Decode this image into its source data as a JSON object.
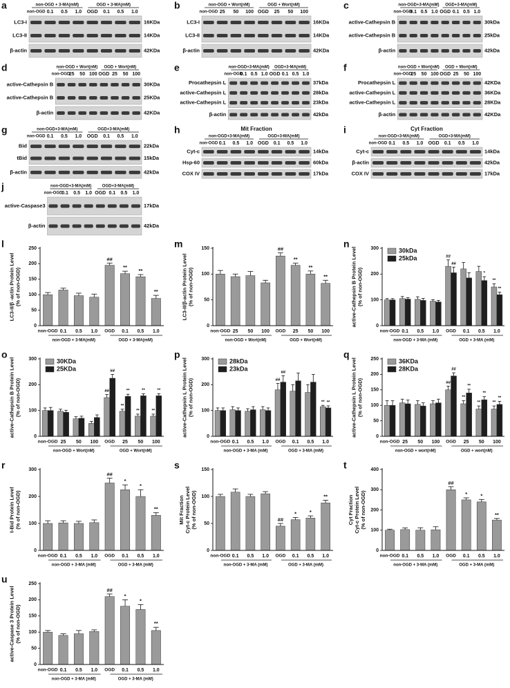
{
  "blots": [
    {
      "letter": "a",
      "groups": [
        "non-OGD + 3-MA(mM)",
        "OGD + 3-MA(mM)"
      ],
      "lanes": [
        "non-OGD",
        "0.1",
        "0.5",
        "1.0",
        "OGD",
        "0.1",
        "0.5",
        "1.0"
      ],
      "strips": [
        {
          "labels": [
            "LC3-I",
            "LC3-II"
          ],
          "kda": [
            "16KDa",
            "14KDa"
          ]
        },
        {
          "labels": [
            "β-actin"
          ],
          "kda": [
            "42KDa"
          ]
        }
      ]
    },
    {
      "letter": "b",
      "groups": [
        "non-OGD + Wort(nM)",
        "OGD + Wort(nM)"
      ],
      "lanes": [
        "non-OGD",
        "25",
        "50",
        "100",
        "OGD",
        "25",
        "50",
        "100"
      ],
      "strips": [
        {
          "labels": [
            "LC3-I",
            "LC3-II"
          ],
          "kda": [
            "16KDa",
            "14KDa"
          ]
        },
        {
          "labels": [
            "β-actin"
          ],
          "kda": [
            "42KDa"
          ]
        }
      ]
    },
    {
      "letter": "c",
      "groups": [
        "non-OGD+3-MA(mM)",
        "OGD+3-MA(mM)"
      ],
      "lanes": [
        "non-OGD",
        "0.1",
        "0.5",
        "1.0",
        "OGD",
        "0.1",
        "0.5",
        "1.0"
      ],
      "strips": [
        {
          "labels": [
            "active-Cathepsin B",
            "active-Cathepsin B"
          ],
          "kda": [
            "30kDa",
            "25kDa"
          ]
        },
        {
          "labels": [
            "β-actin"
          ],
          "kda": [
            "42kDa"
          ]
        }
      ]
    },
    {
      "letter": "d",
      "groups": [
        "non-OGD + Wort(nM)",
        "OGD + Wort(nM)"
      ],
      "lanes": [
        "non-OGD",
        "25",
        "50",
        "100",
        "OGD",
        "25",
        "50",
        "100"
      ],
      "strips": [
        {
          "labels": [
            "active-Cathepsin B",
            "active-Cathepsin B"
          ],
          "kda": [
            "30KDa",
            "25KDa"
          ]
        },
        {
          "labels": [
            "β-actin"
          ],
          "kda": [
            "42KDa"
          ]
        }
      ]
    },
    {
      "letter": "e",
      "groups": [
        "non-OGD+3-MA(mM)",
        "OGD+3-MA(mM)"
      ],
      "lanes": [
        "non-OGD",
        "0.1",
        "0.5",
        "1.0",
        "OGD",
        "0.1",
        "0.5",
        "1.0"
      ],
      "strips": [
        {
          "labels": [
            "Procathepsin L",
            "active-Cathepsin L",
            "active-Cathepsin L"
          ],
          "kda": [
            "37kDa",
            "28kDa",
            "23kDa"
          ]
        },
        {
          "labels": [
            "β-actin"
          ],
          "kda": [
            "42kDa"
          ]
        }
      ]
    },
    {
      "letter": "f",
      "groups": [
        "non-OGD + Wort(nM)",
        "OGD + Wort(nM)"
      ],
      "lanes": [
        "non-OGD",
        "25",
        "50",
        "100",
        "OGD",
        "25",
        "50",
        "100"
      ],
      "strips": [
        {
          "labels": [
            "Procathepsin L",
            "active-Cathepsin L",
            "active-Cathepsin L"
          ],
          "kda": [
            "42KDa",
            "36KDa",
            "28KDa"
          ]
        },
        {
          "labels": [
            "β-actin"
          ],
          "kda": [
            "42KDa"
          ]
        }
      ]
    },
    {
      "letter": "g",
      "groups": [
        "non-OGD+3-MA(mM)",
        "OGD+3-MA(mM)"
      ],
      "lanes": [
        "non-OGD",
        "0.1",
        "0.5",
        "1.0",
        "OGD",
        "0.1",
        "0.5",
        "1.0"
      ],
      "strips": [
        {
          "labels": [
            "Bid",
            "tBid"
          ],
          "kda": [
            "22kDa",
            "15kDa"
          ]
        },
        {
          "labels": [
            "β-actin"
          ],
          "kda": [
            "42kDa"
          ]
        }
      ]
    },
    {
      "letter": "h",
      "title": "Mit Fraction",
      "groups": [
        "non-OGD+3-MA(mM)",
        "OGD+3-MA(mM)"
      ],
      "lanes": [
        "non-OGD",
        "0.1",
        "0.5",
        "1.0",
        "OGD",
        "0.1",
        "0.5",
        "1.0"
      ],
      "strips": [
        {
          "labels": [
            "Cyt-c"
          ],
          "kda": [
            "14kDa"
          ]
        },
        {
          "labels": [
            "Hsp-60"
          ],
          "kda": [
            "60kDa"
          ]
        },
        {
          "labels": [
            "COX IV"
          ],
          "kda": [
            "17kDa"
          ]
        }
      ]
    },
    {
      "letter": "i",
      "title": "Cyt Fraction",
      "groups": [
        "non-OGD+3-MA(mM)",
        "OGD+3-MA(mM)"
      ],
      "lanes": [
        "non-OGD",
        "0.1",
        "0.5",
        "1.0",
        "OGD",
        "0.1",
        "0.5",
        "1.0"
      ],
      "strips": [
        {
          "labels": [
            "Cyt-c"
          ],
          "kda": [
            "14kDa"
          ]
        },
        {
          "labels": [
            "β-actin"
          ],
          "kda": [
            "42kDa"
          ]
        },
        {
          "labels": [
            "COX IV"
          ],
          "kda": [
            "17kDa"
          ]
        }
      ]
    },
    {
      "letter": "j",
      "groups": [
        "non-OGD+3-MA(mM)",
        "OGD+3-MA(mM)"
      ],
      "lanes": [
        "non-OGD",
        "0.1",
        "0.5",
        "1.0",
        "OGD",
        "0.1",
        "0.5",
        "1.0"
      ],
      "strips": [
        {
          "labels": [
            "active-Caspase3"
          ],
          "kda": [
            "17kDa"
          ]
        },
        {
          "labels": [
            "β-actin"
          ],
          "kda": [
            "42kDa"
          ]
        }
      ]
    }
  ],
  "chart_data": [
    {
      "type": "bar",
      "letter": "l",
      "ylabel": [
        "LC3-II/β -actin Protein Level",
        "(% of non-OGD)"
      ],
      "categories": [
        "non-OGD",
        "0.1",
        "0.5",
        "1.0",
        "OGD",
        "0.1",
        "0.5",
        "1.0"
      ],
      "groups": [
        "non-OGD + 3-MA(mM)",
        "OGD + 3-MA(mM)"
      ],
      "ylim": [
        0,
        250
      ],
      "yticks": [
        0,
        50,
        100,
        150,
        200,
        250
      ],
      "color": "#9a9a9a",
      "values": [
        100,
        115,
        97,
        92,
        195,
        168,
        158,
        88
      ],
      "errors": [
        7,
        6,
        8,
        10,
        7,
        8,
        7,
        10
      ],
      "annotations": [
        null,
        null,
        null,
        null,
        "##",
        "**",
        "**",
        "**"
      ]
    },
    {
      "type": "bar",
      "letter": "m",
      "ylabel": [
        "LC3-II/β-actin Protein Level",
        "(% of non-OGD)"
      ],
      "categories": [
        "non-OGD",
        "25",
        "50",
        "100",
        "OGD",
        "25",
        "50",
        "100"
      ],
      "groups": [
        "non-OGD + Wort(nM)",
        "OGD + Wort(nM)"
      ],
      "ylim": [
        0,
        150
      ],
      "yticks": [
        0,
        50,
        100,
        150
      ],
      "color": "#9a9a9a",
      "values": [
        100,
        95,
        97,
        83,
        135,
        117,
        100,
        82
      ],
      "errors": [
        7,
        5,
        8,
        5,
        6,
        4,
        6,
        6
      ],
      "annotations": [
        null,
        null,
        null,
        null,
        "##",
        "**",
        "**",
        "**"
      ]
    },
    {
      "type": "bar",
      "letter": "n",
      "ylabel": [
        "active-Cathepsin B Protein Level",
        "(% of non-OGD)"
      ],
      "categories": [
        "non-OGD",
        "0.1",
        "0.5",
        "1.0",
        "OGD",
        "0.1",
        "0.5",
        "1.0"
      ],
      "groups": [
        "non-OGD + 3-MA (mM)",
        "OGD + 3-MA (mM)"
      ],
      "ylim": [
        0,
        300
      ],
      "yticks": [
        0,
        100,
        200,
        300
      ],
      "series": [
        {
          "name": "30kDa",
          "color": "#9a9a9a",
          "values": [
            100,
            105,
            102,
            95,
            230,
            220,
            210,
            150
          ],
          "errors": [
            5,
            8,
            10,
            6,
            25,
            25,
            20,
            12
          ],
          "annotations": [
            null,
            null,
            null,
            null,
            "##",
            null,
            null,
            "**"
          ]
        },
        {
          "name": "25kDa",
          "color": "#1e1e1e",
          "values": [
            100,
            103,
            98,
            92,
            205,
            185,
            175,
            120
          ],
          "errors": [
            5,
            6,
            8,
            6,
            22,
            20,
            15,
            10
          ],
          "annotations": [
            null,
            null,
            null,
            null,
            "##",
            null,
            "*",
            "**"
          ]
        }
      ]
    },
    {
      "type": "bar",
      "letter": "o",
      "ylabel": [
        "active-Cathepsin B Protein Level",
        "(% of non-OGD)"
      ],
      "categories": [
        "non-OGD",
        "25",
        "50",
        "100",
        "OGD",
        "25",
        "50",
        "100"
      ],
      "groups": [
        "non-OGD + Wort(nM)",
        "OGD + Wort(nM)"
      ],
      "ylim": [
        0,
        300
      ],
      "yticks": [
        0,
        100,
        200,
        300
      ],
      "series": [
        {
          "name": "30KDa",
          "color": "#9a9a9a",
          "values": [
            100,
            97,
            68,
            50,
            150,
            97,
            78,
            78
          ],
          "errors": [
            10,
            8,
            8,
            8,
            12,
            8,
            8,
            8
          ],
          "annotations": [
            null,
            null,
            null,
            null,
            "##",
            "**",
            "**",
            "**"
          ]
        },
        {
          "name": "25KDa",
          "color": "#1e1e1e",
          "values": [
            100,
            93,
            70,
            73,
            225,
            155,
            157,
            157
          ],
          "errors": [
            12,
            8,
            8,
            10,
            15,
            8,
            8,
            8
          ],
          "annotations": [
            null,
            null,
            null,
            null,
            "##",
            "**",
            "**",
            "**"
          ]
        }
      ]
    },
    {
      "type": "bar",
      "letter": "p",
      "ylabel": [
        "active-Cathepsin L Protein Level",
        "(% of non-OGD)"
      ],
      "categories": [
        "non-OGD",
        "0.1",
        "0.5",
        "1.0",
        "OGD",
        "0.1",
        "0.5",
        "1.0"
      ],
      "groups": [
        "non-OGD + 3-MA (mM)",
        "OGD + 3-MA (mM)"
      ],
      "ylim": [
        0,
        300
      ],
      "yticks": [
        0,
        100,
        200,
        300
      ],
      "series": [
        {
          "name": "28kDa",
          "color": "#9a9a9a",
          "values": [
            100,
            103,
            97,
            103,
            180,
            175,
            170,
            115
          ],
          "errors": [
            10,
            12,
            10,
            12,
            25,
            25,
            30,
            5
          ],
          "annotations": [
            null,
            null,
            null,
            null,
            "##",
            null,
            null,
            "**"
          ]
        },
        {
          "name": "23kDa",
          "color": "#1e1e1e",
          "values": [
            100,
            100,
            103,
            100,
            210,
            215,
            210,
            110
          ],
          "errors": [
            10,
            10,
            12,
            10,
            25,
            30,
            30,
            8
          ],
          "annotations": [
            null,
            null,
            null,
            null,
            "##",
            null,
            null,
            "**"
          ]
        }
      ]
    },
    {
      "type": "bar",
      "letter": "q",
      "ylabel": [
        "active-Cathepsin L Protein Level",
        "(% of non-OGD)"
      ],
      "categories": [
        "non-OGD",
        "25",
        "50",
        "100",
        "OGD",
        "25",
        "50",
        "100"
      ],
      "groups": [
        "non-OGD + wort(nM)",
        "OGD + wort(nM)"
      ],
      "ylim": [
        0,
        250
      ],
      "yticks": [
        0,
        50,
        100,
        150,
        200,
        250
      ],
      "series": [
        {
          "name": "36KDa",
          "color": "#9a9a9a",
          "values": [
            100,
            108,
            103,
            105,
            150,
            105,
            88,
            88
          ],
          "errors": [
            15,
            12,
            12,
            10,
            12,
            10,
            10,
            10
          ],
          "annotations": [
            null,
            null,
            null,
            null,
            "##",
            "**",
            "**",
            "**"
          ]
        },
        {
          "name": "28KDa",
          "color": "#1e1e1e",
          "values": [
            100,
            105,
            98,
            108,
            195,
            140,
            118,
            103
          ],
          "errors": [
            15,
            12,
            10,
            12,
            10,
            12,
            10,
            10
          ],
          "annotations": [
            null,
            null,
            null,
            null,
            "##",
            "**",
            "**",
            "**"
          ]
        }
      ]
    },
    {
      "type": "bar",
      "letter": "r",
      "ylabel": [
        "t-Bid Protein Level",
        "(% of non-OGD)"
      ],
      "categories": [
        "non-OGD",
        "0.1",
        "0.5",
        "1.0",
        "OGD",
        "0.1",
        "0.5",
        "1.0"
      ],
      "groups": [
        "non-OGD + 3-MA (mM)",
        "OGD + 3-MA (mM)"
      ],
      "ylim": [
        0,
        300
      ],
      "yticks": [
        0,
        100,
        200,
        300
      ],
      "color": "#9a9a9a",
      "values": [
        100,
        102,
        100,
        103,
        250,
        225,
        200,
        130
      ],
      "errors": [
        10,
        8,
        8,
        10,
        18,
        18,
        25,
        10
      ],
      "annotations": [
        null,
        null,
        null,
        null,
        "##",
        "*",
        "*",
        "**"
      ]
    },
    {
      "type": "bar",
      "letter": "s",
      "ylabel": [
        "Mit Fraction",
        "Cyt-c Protein Level",
        "(% of non-OGD)"
      ],
      "categories": [
        "non-OGD",
        "0.1",
        "0.5",
        "1.0",
        "OGD",
        "0.1",
        "0.5",
        "1.0"
      ],
      "groups": [
        "non-OGD + 3-MA (mM)",
        "OGD + 3-MA (mM)"
      ],
      "ylim": [
        0,
        150
      ],
      "yticks": [
        0,
        50,
        100,
        150
      ],
      "color": "#9a9a9a",
      "values": [
        100,
        108,
        100,
        105,
        45,
        57,
        60,
        88
      ],
      "errors": [
        4,
        6,
        4,
        4,
        5,
        4,
        4,
        5
      ],
      "annotations": [
        null,
        null,
        null,
        null,
        "##",
        "*",
        "*",
        "**"
      ]
    },
    {
      "type": "bar",
      "letter": "t",
      "ylabel": [
        "Cyt Fraction",
        "Cyt-c Protein Level",
        "(% of non-OGD)"
      ],
      "categories": [
        "non-OGD",
        "0.1",
        "0.5",
        "1.0",
        "OGD",
        "0.1",
        "0.5",
        "1.0"
      ],
      "groups": [
        "non-OGD + 3-MA (mM)",
        "OGD + 3-MA (mM)"
      ],
      "ylim": [
        0,
        400
      ],
      "yticks": [
        0,
        100,
        200,
        300,
        400
      ],
      "color": "#9a9a9a",
      "values": [
        100,
        103,
        100,
        102,
        300,
        250,
        240,
        150
      ],
      "errors": [
        5,
        8,
        12,
        15,
        15,
        10,
        12,
        8
      ],
      "annotations": [
        null,
        null,
        null,
        null,
        "##",
        "*",
        "*",
        "**"
      ]
    },
    {
      "type": "bar",
      "letter": "u",
      "ylabel": [
        "active-Caspase 3 Protein Level",
        "(% of non-OGD)"
      ],
      "categories": [
        "non-OGD",
        "0.1",
        "0.5",
        "1.0",
        "OGD",
        "0.1",
        "0.5",
        "1.0"
      ],
      "groups": [
        "non-OGD + 3-MA (mM)",
        "OGD + 3-MA (mM)"
      ],
      "ylim": [
        0,
        250
      ],
      "yticks": [
        0,
        50,
        100,
        150,
        200,
        250
      ],
      "color": "#9a9a9a",
      "values": [
        100,
        90,
        95,
        102,
        210,
        180,
        170,
        105
      ],
      "errors": [
        5,
        5,
        10,
        5,
        8,
        20,
        15,
        10
      ],
      "annotations": [
        null,
        null,
        null,
        null,
        "##",
        "*",
        "*",
        "**"
      ]
    }
  ]
}
